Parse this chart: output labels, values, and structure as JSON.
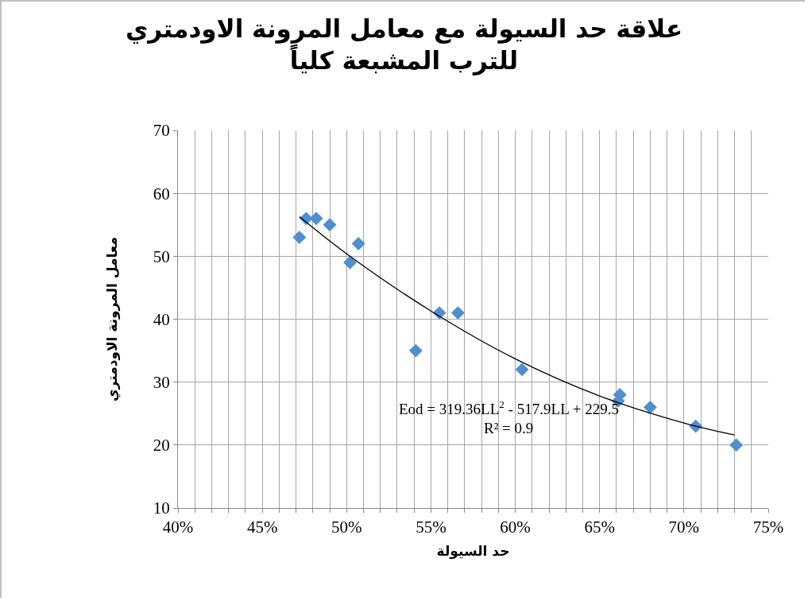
{
  "chart_data": {
    "type": "scatter",
    "title": "علاقة حد السيولة مع معامل المرونة الاودمتري للترب المشبعة كلياً",
    "xlabel": "حد السيولة",
    "ylabel": "معامل المرونة الاودمتري",
    "marker": "diamond",
    "grid": true,
    "xlim": [
      0.4,
      0.75
    ],
    "ylim": [
      10,
      70
    ],
    "xticks": [
      {
        "value": 0.4,
        "label": "40%"
      },
      {
        "value": 0.41,
        "label": null
      },
      {
        "value": 0.42,
        "label": null
      },
      {
        "value": 0.43,
        "label": null
      },
      {
        "value": 0.44,
        "label": null
      },
      {
        "value": 0.45,
        "label": "45%"
      },
      {
        "value": 0.46,
        "label": null
      },
      {
        "value": 0.47,
        "label": null
      },
      {
        "value": 0.48,
        "label": null
      },
      {
        "value": 0.49,
        "label": null
      },
      {
        "value": 0.5,
        "label": "50%"
      },
      {
        "value": 0.51,
        "label": null
      },
      {
        "value": 0.52,
        "label": null
      },
      {
        "value": 0.53,
        "label": null
      },
      {
        "value": 0.54,
        "label": null
      },
      {
        "value": 0.55,
        "label": "55%"
      },
      {
        "value": 0.56,
        "label": null
      },
      {
        "value": 0.57,
        "label": null
      },
      {
        "value": 0.58,
        "label": null
      },
      {
        "value": 0.59,
        "label": null
      },
      {
        "value": 0.6,
        "label": "60%"
      },
      {
        "value": 0.61,
        "label": null
      },
      {
        "value": 0.62,
        "label": null
      },
      {
        "value": 0.63,
        "label": null
      },
      {
        "value": 0.64,
        "label": null
      },
      {
        "value": 0.65,
        "label": "65%"
      },
      {
        "value": 0.66,
        "label": null
      },
      {
        "value": 0.67,
        "label": null
      },
      {
        "value": 0.68,
        "label": null
      },
      {
        "value": 0.69,
        "label": null
      },
      {
        "value": 0.7,
        "label": "70%"
      },
      {
        "value": 0.71,
        "label": null
      },
      {
        "value": 0.72,
        "label": null
      },
      {
        "value": 0.73,
        "label": null
      },
      {
        "value": 0.74,
        "label": null
      },
      {
        "value": 0.75,
        "label": "75%"
      }
    ],
    "yticks": [
      10,
      20,
      30,
      40,
      50,
      60,
      70
    ],
    "annotations": [
      "Eod = 319.36LL$^{2}$ - 517.9LL + 229.5",
      "R² = 0.9"
    ],
    "series": [
      {
        "color": "#4f8fd0",
        "x": [
          0.472,
          0.476,
          0.482,
          0.49,
          0.502,
          0.507,
          0.541,
          0.555,
          0.566,
          0.604,
          0.661,
          0.662,
          0.68,
          0.707,
          0.731
        ],
        "values": [
          53,
          56,
          56,
          55,
          49,
          52,
          35,
          41,
          41,
          32,
          27,
          28,
          26,
          23,
          20
        ]
      },
      {
        "type": "line",
        "marker": "none",
        "color": "#000000",
        "x": [
          0.472,
          0.5,
          0.55,
          0.6,
          0.65,
          0.7,
          0.73
        ],
        "values": [
          56.3,
          50.4,
          41.3,
          33.7,
          27.8,
          23.5,
          21.6
        ]
      }
    ]
  }
}
